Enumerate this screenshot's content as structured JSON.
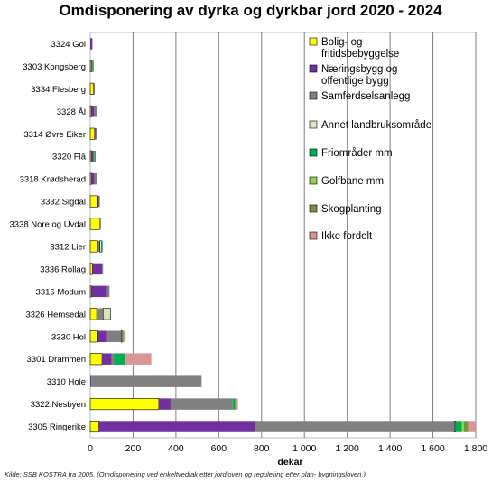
{
  "chart_data": {
    "type": "bar",
    "orientation": "horizontal",
    "stacked": true,
    "title": "Omdisponering av dyrka og dyrkbar jord 2020 - 2024",
    "xlabel": "dekar",
    "ylabel": "",
    "xlim": [
      0,
      1800
    ],
    "x_ticks": [
      "0",
      "200",
      "400",
      "600",
      "800",
      "1 000",
      "1 200",
      "1 400",
      "1 600",
      "1 800"
    ],
    "grid": "vertical",
    "legend_position": "right",
    "source_note": "Kilde: SSB KOSTRA fra 2005. (Omdisponering ved enkeltvedtak etter jordloven og regulering etter plan- bygningsloven.)",
    "categories": [
      "3324 Gol",
      "3303 Kongsberg",
      "3334 Flesberg",
      "3328 Ål",
      "3314 Øvre Eiker",
      "3320 Flå",
      "3318 Krødsherad",
      "3332 Sigdal",
      "3338 Nore og Uvdal",
      "3312 Lier",
      "3336 Rollag",
      "3316 Modum",
      "3326 Hemsedal",
      "3330 Hol",
      "3301 Drammen",
      "3310 Hole",
      "3322 Nesbyen",
      "3305 Ringerike"
    ],
    "series": [
      {
        "name": "Bolig- og fritidsbebyggelse",
        "color": "#ffff00",
        "values": [
          0,
          5,
          15,
          5,
          20,
          5,
          5,
          35,
          45,
          35,
          10,
          5,
          30,
          35,
          55,
          0,
          320,
          40
        ]
      },
      {
        "name": "Næringsbygg og offentlige bygg",
        "color": "#7030a0",
        "values": [
          10,
          3,
          5,
          15,
          5,
          10,
          15,
          5,
          0,
          0,
          45,
          70,
          0,
          40,
          45,
          5,
          55,
          730
        ]
      },
      {
        "name": "Samferdselsanlegg",
        "color": "#808080",
        "values": [
          0,
          3,
          0,
          10,
          5,
          5,
          10,
          5,
          5,
          10,
          5,
          15,
          30,
          70,
          10,
          515,
          290,
          930
        ]
      },
      {
        "name": "Annet landbruksområde",
        "color": "#d8e4bc",
        "values": [
          0,
          0,
          0,
          0,
          0,
          0,
          0,
          0,
          0,
          8,
          0,
          0,
          35,
          5,
          0,
          0,
          0,
          5
        ]
      },
      {
        "name": "Friområder mm",
        "color": "#00b050",
        "values": [
          0,
          5,
          0,
          0,
          0,
          5,
          0,
          0,
          0,
          5,
          0,
          0,
          0,
          0,
          55,
          0,
          10,
          30
        ]
      },
      {
        "name": "Golfbane mm",
        "color": "#92d050",
        "values": [
          0,
          0,
          0,
          0,
          0,
          0,
          0,
          0,
          0,
          0,
          0,
          0,
          0,
          0,
          0,
          0,
          0,
          10
        ]
      },
      {
        "name": "Skogplanting",
        "color": "#77933c",
        "values": [
          0,
          0,
          0,
          0,
          0,
          0,
          0,
          0,
          0,
          0,
          0,
          0,
          0,
          5,
          0,
          0,
          5,
          20
        ]
      },
      {
        "name": "Ikke fordelt",
        "color": "#da9694",
        "values": [
          0,
          0,
          0,
          0,
          0,
          0,
          0,
          0,
          0,
          0,
          0,
          0,
          0,
          10,
          120,
          0,
          10,
          35
        ]
      }
    ]
  }
}
